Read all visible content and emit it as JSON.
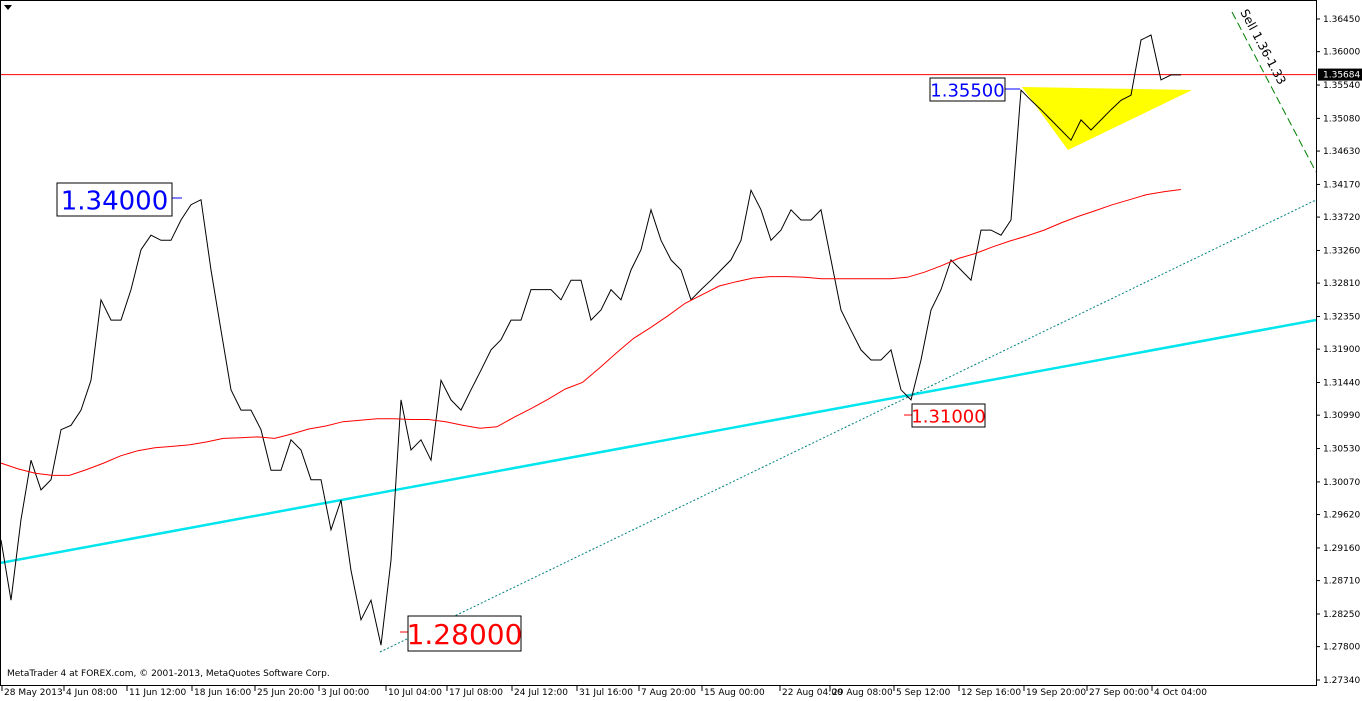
{
  "chart_data": {
    "type": "line",
    "title": "",
    "y_ticks": [
      "1.36450",
      "1.36000",
      "1.35540",
      "1.35080",
      "1.34630",
      "1.34170",
      "1.33720",
      "1.33260",
      "1.32810",
      "1.32350",
      "1.31900",
      "1.31440",
      "1.30990",
      "1.30530",
      "1.30070",
      "1.29620",
      "1.29160",
      "1.28710",
      "1.28250",
      "1.27800",
      "1.27340"
    ],
    "ylim": [
      1.2734,
      1.3645
    ],
    "x_ticks": [
      "28 May 2013",
      "4 Jun 08:00",
      "11 Jun 12:00",
      "18 Jun 16:00",
      "25 Jun 20:00",
      "3 Jul 00:00",
      "10 Jul 04:00",
      "17 Jul 08:00",
      "24 Jul 12:00",
      "31 Jul 16:00",
      "7 Aug 20:00",
      "15 Aug 00:00",
      "22 Aug 04:00",
      "29 Aug 08:00",
      "5 Sep 12:00",
      "12 Sep 16:00",
      "19 Sep 20:00",
      "27 Sep 00:00",
      "4 Oct 04:00"
    ],
    "current_price": "1.35684",
    "price": [
      1.2927,
      1.2844,
      1.2955,
      1.3037,
      1.2996,
      1.301,
      1.3079,
      1.3085,
      1.3106,
      1.3147,
      1.3258,
      1.323,
      1.323,
      1.3272,
      1.3327,
      1.3347,
      1.334,
      1.334,
      1.3368,
      1.3389,
      1.3396,
      1.3299,
      1.3216,
      1.3134,
      1.3106,
      1.3106,
      1.3079,
      1.3023,
      1.3023,
      1.3065,
      1.3051,
      1.301,
      1.301,
      1.2941,
      1.2982,
      1.2885,
      1.2817,
      1.2844,
      1.2782,
      1.2899,
      1.312,
      1.3051,
      1.3065,
      1.3037,
      1.3147,
      1.312,
      1.3106,
      1.3134,
      1.3161,
      1.3189,
      1.3203,
      1.323,
      1.323,
      1.3272,
      1.3272,
      1.3272,
      1.3258,
      1.3285,
      1.3285,
      1.323,
      1.3244,
      1.3272,
      1.3258,
      1.3299,
      1.3327,
      1.3382,
      1.334,
      1.3313,
      1.3299,
      1.3258,
      1.3272,
      1.3285,
      1.3299,
      1.3313,
      1.334,
      1.3409,
      1.3382,
      1.334,
      1.3354,
      1.3382,
      1.3368,
      1.3368,
      1.3382,
      1.3313,
      1.3244,
      1.3216,
      1.3189,
      1.3175,
      1.3175,
      1.3189,
      1.3134,
      1.312,
      1.3175,
      1.3244,
      1.3272,
      1.3313,
      1.3299,
      1.3285,
      1.3354,
      1.3354,
      1.3347,
      1.3368,
      1.3547,
      1.3533,
      1.352,
      1.3506,
      1.3492,
      1.3478,
      1.3506,
      1.3492,
      1.3506,
      1.352,
      1.3533,
      1.354,
      1.3616,
      1.3623,
      1.3561,
      1.3568,
      1.3568
    ],
    "moving_average": [
      1.3033,
      1.3025,
      1.3019,
      1.3016,
      1.3016,
      1.3024,
      1.3033,
      1.3043,
      1.305,
      1.3054,
      1.3056,
      1.3058,
      1.3062,
      1.3067,
      1.3068,
      1.3069,
      1.3067,
      1.3073,
      1.308,
      1.3084,
      1.309,
      1.3092,
      1.3094,
      1.3094,
      1.3093,
      1.3093,
      1.309,
      1.3085,
      1.3081,
      1.3083,
      1.3096,
      1.3108,
      1.3121,
      1.3135,
      1.3144,
      1.3164,
      1.3185,
      1.3205,
      1.322,
      1.3236,
      1.3253,
      1.3265,
      1.3277,
      1.3283,
      1.3288,
      1.329,
      1.329,
      1.3289,
      1.3287,
      1.3287,
      1.3287,
      1.3287,
      1.3287,
      1.3289,
      1.3296,
      1.3305,
      1.3315,
      1.3322,
      1.3331,
      1.3339,
      1.3346,
      1.3354,
      1.3364,
      1.3373,
      1.3381,
      1.3389,
      1.3396,
      1.3403,
      1.3407,
      1.341
    ]
  },
  "annotations": {
    "level_1": "1.34000",
    "level_2": "1.35500",
    "level_3": "1.31000",
    "level_4": "1.28000",
    "sell_note": "Sell 1.36-1.33"
  },
  "colors": {
    "price": "#000000",
    "moving_average": "#ff0000",
    "current_price_line": "#ff0000",
    "trendline": "#00e5ee",
    "dotted_trendline": "#008080",
    "sell_line": "#008000",
    "triangle": "#ffff00",
    "blue_label": "#0000ff",
    "red_label": "#ff0000"
  },
  "footer": {
    "copyright": "MetaTrader 4 at FOREX.com, © 2001-2013, MetaQuotes Software Corp."
  }
}
